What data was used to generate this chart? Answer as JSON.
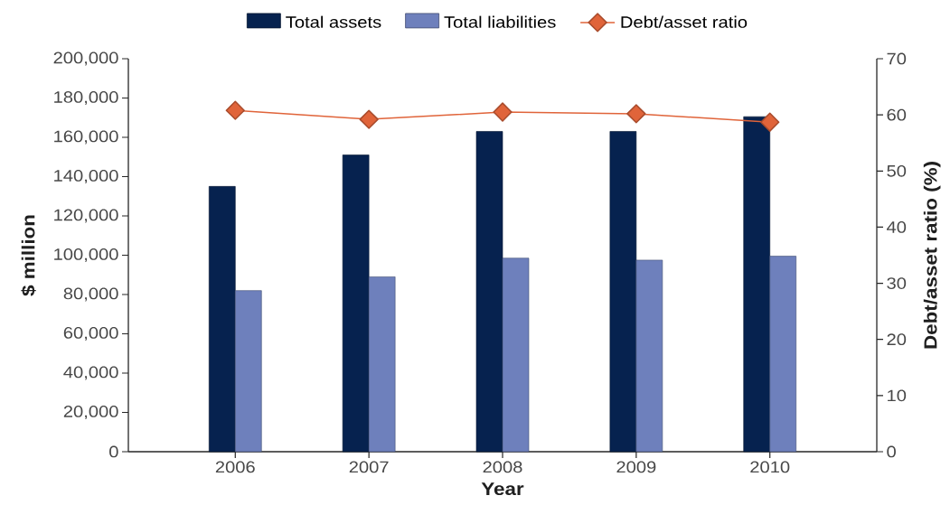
{
  "chart_data": {
    "type": "bar",
    "categories": [
      "2006",
      "2007",
      "2008",
      "2009",
      "2010"
    ],
    "xlabel": "Year",
    "ylabel": "$ million",
    "y2label": "Debt/asset ratio (%)",
    "ylim": [
      0,
      200000
    ],
    "yticks": [
      0,
      {
        "value": 20000,
        "label": "20,000"
      },
      {
        "value": 40000,
        "label": "40,000"
      },
      {
        "value": 60000,
        "label": "60,000"
      },
      {
        "value": 80000,
        "label": "80,000"
      },
      {
        "value": 100000,
        "label": "100,000"
      },
      {
        "value": 120000,
        "label": "120,000"
      },
      {
        "value": 140000,
        "label": "140,000"
      },
      {
        "value": 160000,
        "label": "160,000"
      },
      {
        "value": 180000,
        "label": "180,000"
      },
      {
        "value": 200000,
        "label": "200,000"
      }
    ],
    "y2lim": [
      0,
      70
    ],
    "y2ticks": [
      0,
      10,
      20,
      30,
      40,
      50,
      60,
      70
    ],
    "legend": "top",
    "series": [
      {
        "name": "Total assets",
        "color": "#06224f",
        "values": [
          135000,
          151000,
          163000,
          163000,
          170500
        ]
      },
      {
        "name": "Total liabilities",
        "color": "#6e80bc",
        "values": [
          82000,
          89000,
          98500,
          97500,
          99500
        ]
      },
      {
        "name": "Debt/asset ratio",
        "type": "line",
        "axis": "y2",
        "color": "#e0643a",
        "marker": "diamond",
        "line_style": "solid",
        "values": [
          60.8,
          59.2,
          60.5,
          60.2,
          58.7
        ]
      }
    ]
  }
}
